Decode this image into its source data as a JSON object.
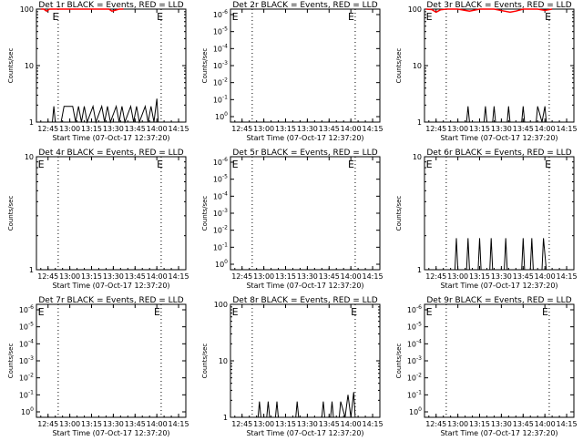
{
  "colors": {
    "events": "#000000",
    "lld": "#ff0000",
    "axes": "#000000"
  },
  "time_ticks": [
    "12:45",
    "13:00",
    "13:15",
    "13:30",
    "13:45",
    "14:00",
    "14:15"
  ],
  "xlabel": "Start Time (07-Oct-17 12:37:20)",
  "ylabel": "Counts/sec",
  "chart_data": [
    {
      "type": "line",
      "title": "Det 1r BLACK = Events, RED = LLD",
      "xlabel": "Start Time (07-Oct-17 12:37:20)",
      "ylabel": "Counts/sec",
      "xlim": [
        "12:37",
        "14:20"
      ],
      "yscale": "log",
      "ytick_labels": [
        "1",
        "10",
        "100"
      ],
      "markers": [
        {
          "time": "12:48",
          "label": "E"
        },
        {
          "time": "14:00",
          "label": "E"
        }
      ],
      "dotted_lines": [
        "12:52",
        "14:03"
      ],
      "series": [
        {
          "color": "black",
          "points": [
            [
              "12:48",
              1
            ],
            [
              "12:49",
              1.9
            ],
            [
              "12:50",
              1
            ],
            [
              "12:54",
              1
            ],
            [
              "12:56",
              1.9
            ],
            [
              "13:02",
              1.9
            ],
            [
              "13:04",
              1
            ],
            [
              "13:06",
              1.9
            ],
            [
              "13:08",
              1
            ],
            [
              "13:10",
              1.9
            ],
            [
              "13:12",
              1
            ],
            [
              "13:16",
              1.9
            ],
            [
              "13:18",
              1
            ],
            [
              "13:22",
              1.9
            ],
            [
              "13:24",
              1
            ],
            [
              "13:26",
              1.9
            ],
            [
              "13:28",
              1
            ],
            [
              "13:32",
              1.9
            ],
            [
              "13:34",
              1
            ],
            [
              "13:36",
              1.9
            ],
            [
              "13:38",
              1
            ],
            [
              "13:42",
              1.9
            ],
            [
              "13:44",
              1
            ],
            [
              "13:46",
              1.9
            ],
            [
              "13:48",
              1
            ],
            [
              "13:52",
              1.9
            ],
            [
              "13:54",
              1
            ],
            [
              "13:56",
              1.9
            ],
            [
              "13:58",
              1
            ],
            [
              "14:00",
              2.6
            ],
            [
              "14:01",
              1
            ]
          ]
        },
        {
          "color": "red",
          "points": [
            [
              "12:40",
              100
            ],
            [
              "12:42",
              100
            ],
            [
              "12:44",
              92
            ],
            [
              "12:46",
              100
            ],
            [
              "13:27",
              100
            ],
            [
              "13:29",
              92
            ],
            [
              "13:31",
              95
            ],
            [
              "13:34",
              100
            ],
            [
              "13:37",
              100
            ]
          ]
        }
      ]
    },
    {
      "type": "line",
      "title": "Det 2r BLACK = Events, RED = LLD",
      "xlabel": "Start Time (07-Oct-17 12:37:20)",
      "ylabel": "Counts/sec",
      "xlim": [
        "12:37",
        "14:20"
      ],
      "yscale": "log",
      "ytick_labels": [
        "10^0",
        "10^-1",
        "10^-2",
        "10^-3",
        "10^-4",
        "10^-5",
        "10^-6"
      ],
      "markers": [
        {
          "time": "12:38",
          "label": "E"
        },
        {
          "time": "13:58",
          "label": "E"
        }
      ],
      "dotted_lines": [
        "12:52",
        "14:03"
      ],
      "series": []
    },
    {
      "type": "line",
      "title": "Det 3r BLACK = Events, RED = LLD",
      "xlabel": "Start Time (07-Oct-17 12:37:20)",
      "ylabel": "Counts/sec",
      "xlim": [
        "12:37",
        "14:20"
      ],
      "yscale": "log",
      "ytick_labels": [
        "1",
        "10",
        "100"
      ],
      "markers": [
        {
          "time": "12:38",
          "label": "E"
        },
        {
          "time": "14:00",
          "label": "E"
        }
      ],
      "dotted_lines": [
        "12:52",
        "14:03"
      ],
      "series": [
        {
          "color": "black",
          "points": [
            [
              "13:06",
              1
            ],
            [
              "13:07",
              1.9
            ],
            [
              "13:08",
              1
            ],
            [
              "13:18",
              1
            ],
            [
              "13:19",
              1.9
            ],
            [
              "13:20",
              1
            ],
            [
              "13:24",
              1
            ],
            [
              "13:25",
              1.9
            ],
            [
              "13:26",
              1
            ],
            [
              "13:34",
              1
            ],
            [
              "13:35",
              1.9
            ],
            [
              "13:36",
              1
            ],
            [
              "13:44",
              1
            ],
            [
              "13:45",
              1.9
            ],
            [
              "13:46",
              1
            ],
            [
              "13:54",
              1
            ],
            [
              "13:55",
              1.9
            ],
            [
              "13:58",
              1
            ],
            [
              "14:00",
              1.9
            ],
            [
              "14:01",
              1
            ]
          ]
        },
        {
          "color": "red",
          "points": [
            [
              "12:38",
              100
            ],
            [
              "12:42",
              98
            ],
            [
              "12:45",
              88
            ],
            [
              "12:48",
              97
            ],
            [
              "12:52",
              100
            ],
            [
              "13:00",
              100
            ],
            [
              "13:08",
              92
            ],
            [
              "13:15",
              100
            ],
            [
              "13:25",
              100
            ],
            [
              "13:32",
              92
            ],
            [
              "13:36",
              88
            ],
            [
              "13:40",
              92
            ],
            [
              "13:45",
              100
            ],
            [
              "13:55",
              100
            ],
            [
              "14:00",
              95
            ],
            [
              "14:05",
              100
            ]
          ]
        }
      ]
    },
    {
      "type": "line",
      "title": "Det 4r BLACK = Events, RED = LLD",
      "xlabel": "Start Time (07-Oct-17 12:37:20)",
      "ylabel": "Counts/sec",
      "xlim": [
        "12:37",
        "14:20"
      ],
      "yscale": "log",
      "ytick_labels": [
        "1",
        "10"
      ],
      "markers": [
        {
          "time": "12:38",
          "label": "E"
        },
        {
          "time": "14:00",
          "label": "E"
        }
      ],
      "dotted_lines": [
        "12:52",
        "14:03"
      ],
      "series": []
    },
    {
      "type": "line",
      "title": "Det 5r BLACK = Events, RED = LLD",
      "xlabel": "Start Time (07-Oct-17 12:37:20)",
      "ylabel": "Counts/sec",
      "xlim": [
        "12:37",
        "14:20"
      ],
      "yscale": "log",
      "ytick_labels": [
        "10^0",
        "10^-1",
        "10^-2",
        "10^-3",
        "10^-4",
        "10^-5",
        "10^-6"
      ],
      "markers": [
        {
          "time": "12:38",
          "label": "E"
        },
        {
          "time": "13:58",
          "label": "E"
        }
      ],
      "dotted_lines": [
        "12:52",
        "14:03"
      ],
      "series": []
    },
    {
      "type": "line",
      "title": "Det 6r BLACK = Events, RED = LLD",
      "xlabel": "Start Time (07-Oct-17 12:37:20)",
      "ylabel": "Counts/sec",
      "xlim": [
        "12:37",
        "14:20"
      ],
      "yscale": "log",
      "ytick_labels": [
        "1",
        "10"
      ],
      "markers": [
        {
          "time": "12:38",
          "label": "E"
        },
        {
          "time": "14:00",
          "label": "E"
        }
      ],
      "dotted_lines": [
        "12:52",
        "14:03"
      ],
      "series": [
        {
          "color": "black",
          "points": [
            [
              "12:58",
              1
            ],
            [
              "12:59",
              1.9
            ],
            [
              "13:00",
              1
            ],
            [
              "13:06",
              1
            ],
            [
              "13:07",
              1.9
            ],
            [
              "13:08",
              1
            ],
            [
              "13:14",
              1
            ],
            [
              "13:15",
              1.9
            ],
            [
              "13:16",
              1
            ],
            [
              "13:22",
              1
            ],
            [
              "13:23",
              1.9
            ],
            [
              "13:24",
              1
            ],
            [
              "13:32",
              1
            ],
            [
              "13:33",
              1.9
            ],
            [
              "13:34",
              1
            ],
            [
              "13:44",
              1
            ],
            [
              "13:45",
              1.9
            ],
            [
              "13:46",
              1
            ],
            [
              "13:50",
              1
            ],
            [
              "13:51",
              1.9
            ],
            [
              "13:52",
              1
            ],
            [
              "13:58",
              1
            ],
            [
              "13:59",
              1.9
            ],
            [
              "14:01",
              1
            ]
          ]
        }
      ]
    },
    {
      "type": "line",
      "title": "Det 7r BLACK = Events, RED = LLD",
      "xlabel": "Start Time (07-Oct-17 12:37:20)",
      "ylabel": "Counts/sec",
      "xlim": [
        "12:37",
        "14:20"
      ],
      "yscale": "log",
      "ytick_labels": [
        "10^0",
        "10^-1",
        "10^-2",
        "10^-3",
        "10^-4",
        "10^-5",
        "10^-6"
      ],
      "markers": [
        {
          "time": "12:38",
          "label": "E"
        },
        {
          "time": "13:58",
          "label": "E"
        }
      ],
      "dotted_lines": [
        "12:52",
        "14:03"
      ],
      "series": []
    },
    {
      "type": "line",
      "title": "Det 8r BLACK = Events, RED = LLD",
      "xlabel": "Start Time (07-Oct-17 12:37:20)",
      "ylabel": "Counts/sec",
      "xlim": [
        "12:37",
        "14:20"
      ],
      "yscale": "log",
      "ytick_labels": [
        "1",
        "10",
        "100"
      ],
      "markers": [
        {
          "time": "12:38",
          "label": "E"
        },
        {
          "time": "14:00",
          "label": "E"
        }
      ],
      "dotted_lines": [
        "12:52",
        "14:03"
      ],
      "series": [
        {
          "color": "black",
          "points": [
            [
              "12:56",
              1
            ],
            [
              "12:57",
              1.9
            ],
            [
              "12:58",
              1
            ],
            [
              "13:02",
              1
            ],
            [
              "13:03",
              1.9
            ],
            [
              "13:04",
              1
            ],
            [
              "13:08",
              1
            ],
            [
              "13:09",
              1.9
            ],
            [
              "13:10",
              1
            ],
            [
              "13:22",
              1
            ],
            [
              "13:23",
              1.9
            ],
            [
              "13:24",
              1
            ],
            [
              "13:40",
              1
            ],
            [
              "13:41",
              1.9
            ],
            [
              "13:42",
              1
            ],
            [
              "13:46",
              1
            ],
            [
              "13:47",
              1.9
            ],
            [
              "13:48",
              1
            ],
            [
              "13:52",
              1
            ],
            [
              "13:53",
              1.9
            ],
            [
              "13:56",
              1
            ],
            [
              "13:58",
              2.5
            ],
            [
              "14:00",
              1
            ],
            [
              "14:02",
              2.8
            ],
            [
              "14:03",
              1
            ]
          ]
        }
      ]
    },
    {
      "type": "line",
      "title": "Det 9r BLACK = Events, RED = LLD",
      "xlabel": "Start Time (07-Oct-17 12:37:20)",
      "ylabel": "Counts/sec",
      "xlim": [
        "12:37",
        "14:20"
      ],
      "yscale": "log",
      "ytick_labels": [
        "10^0",
        "10^-1",
        "10^-2",
        "10^-3",
        "10^-4",
        "10^-5",
        "10^-6"
      ],
      "markers": [
        {
          "time": "12:38",
          "label": "E"
        },
        {
          "time": "13:58",
          "label": "E"
        }
      ],
      "dotted_lines": [
        "12:52",
        "14:03"
      ],
      "series": []
    }
  ]
}
